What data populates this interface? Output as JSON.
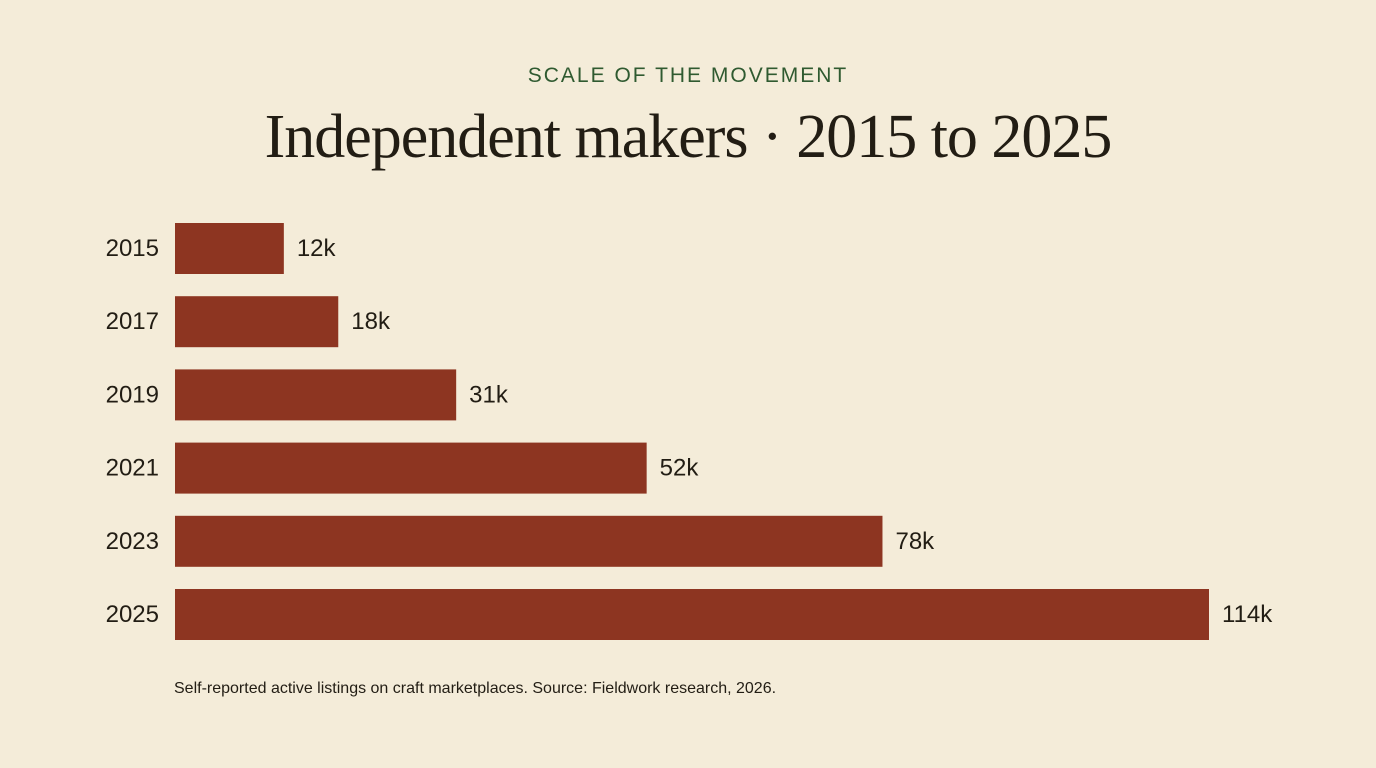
{
  "header": {
    "eyebrow": "SCALE OF THE MOVEMENT",
    "title": "Independent makers · 2015 to 2025"
  },
  "footnote": "Self-reported active listings on craft marketplaces. Source: Fieldwork research, 2026.",
  "colors": {
    "bar": "#8d3521",
    "background": "#f4ecd9",
    "accent": "#2f5a30",
    "text": "#221d14"
  },
  "chart_data": {
    "type": "bar",
    "orientation": "horizontal",
    "categories": [
      "2015",
      "2017",
      "2019",
      "2021",
      "2023",
      "2025"
    ],
    "values": [
      12,
      18,
      31,
      52,
      78,
      114
    ],
    "value_labels": [
      "12k",
      "18k",
      "31k",
      "52k",
      "78k",
      "114k"
    ],
    "unit": "k",
    "title": "Independent makers · 2015 to 2025",
    "xlabel": "",
    "ylabel": "",
    "grid": false,
    "legend": "none"
  }
}
